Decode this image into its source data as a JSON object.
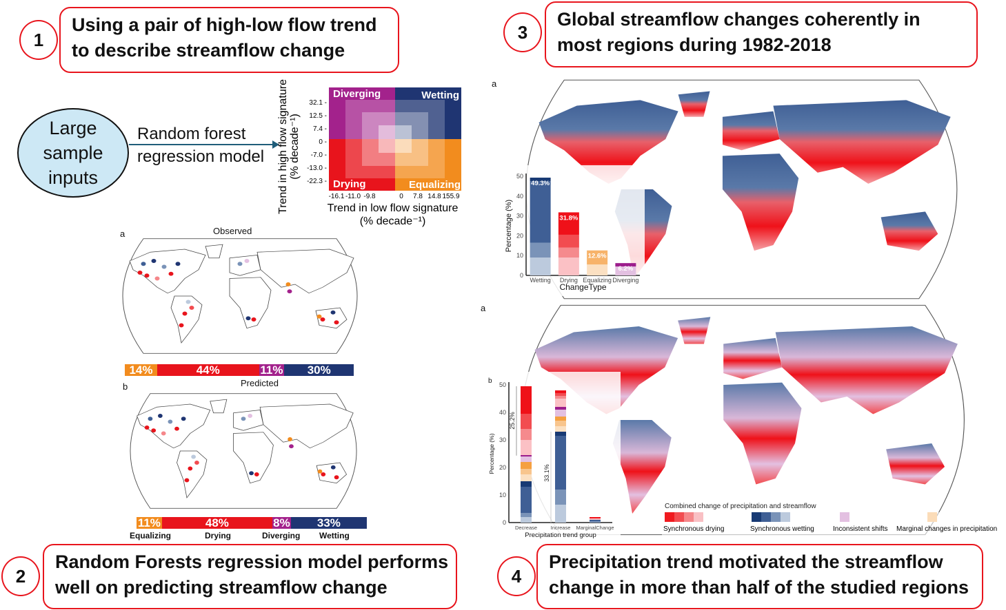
{
  "panel1": {
    "number": "1",
    "title_line1": "Using a pair of high-low flow trend",
    "title_line2": "to describe streamflow change"
  },
  "panel2": {
    "number": "2",
    "title_line1": "Random Forests regression model performs",
    "title_line2": "well on predicting streamflow change"
  },
  "panel3": {
    "number": "3",
    "title_line1": "Global streamflow changes coherently in",
    "title_line2": "most regions during 1982-2018"
  },
  "panel4": {
    "number": "4",
    "title_line1": "Precipitation trend motivated the streamflow",
    "title_line2": "change in more than half of the studied regions"
  },
  "inputs": {
    "line1": "Large",
    "line2": "sample",
    "line3": "inputs"
  },
  "model": {
    "line1": "Random forest",
    "line2": "regression model"
  },
  "matrix": {
    "quadrants": {
      "top_left": "Diverging",
      "top_right": "Wetting",
      "bottom_left": "Drying",
      "bottom_right": "Equalizing"
    },
    "y_label": "Trend in high flow signature",
    "y_unit": "(% decade⁻¹)",
    "x_label": "Trend in low flow signature",
    "x_unit": "(% decade⁻¹)",
    "y_ticks": [
      "32.1",
      "12.5",
      "7.4",
      "0",
      "-7.0",
      "-13.0",
      "-22.3"
    ],
    "x_ticks": [
      "-16.1",
      "-11.0",
      "-9.8",
      "0",
      "7.8",
      "14.8",
      "155.9"
    ],
    "colors": {
      "diverging": "#a3228c",
      "wetting": "#1f3572",
      "drying": "#e8141c",
      "equalizing": "#f28c1e"
    }
  },
  "observed": {
    "panel_letter": "a",
    "title": "Observed",
    "shares": [
      {
        "label": "14%",
        "value": 14,
        "color": "#f28c1e"
      },
      {
        "label": "44%",
        "value": 44,
        "color": "#e8141c"
      },
      {
        "label": "11%",
        "value": 11,
        "color": "#a3228c"
      },
      {
        "label": "30%",
        "value": 30,
        "color": "#1f3572"
      }
    ]
  },
  "predicted": {
    "panel_letter": "b",
    "title": "Predicted",
    "shares": [
      {
        "label": "11%",
        "value": 11,
        "color": "#f28c1e"
      },
      {
        "label": "48%",
        "value": 48,
        "color": "#e8141c"
      },
      {
        "label": "8%",
        "value": 8,
        "color": "#a3228c"
      },
      {
        "label": "33%",
        "value": 33,
        "color": "#1f3572"
      }
    ],
    "categories": [
      "Equalizing",
      "Drying",
      "Diverging",
      "Wetting"
    ]
  },
  "global_map": {
    "panel_letter": "a"
  },
  "precip_map": {
    "panel_letter": "a",
    "legend_title": "Combined change of precipitation and streamflow",
    "legend": [
      {
        "label": "Synchronous drying",
        "colors": [
          "#f01a1f",
          "#f24c50",
          "#f5878a",
          "#f9c0c4"
        ]
      },
      {
        "label": "Synchronous wetting",
        "colors": [
          "#183a74",
          "#3f5f95",
          "#7a93b8",
          "#bccadd"
        ]
      },
      {
        "label": "Inconsistent shifts",
        "colors": [
          "#e3c0e1"
        ]
      },
      {
        "label": "Marginal changes in precipitation",
        "colors": [
          "#fbdcb8"
        ]
      }
    ]
  },
  "chart_data": [
    {
      "type": "bar",
      "stacked": true,
      "xlabel": "ChangeType",
      "ylabel": "Percentage (%)",
      "ylim": [
        0,
        50
      ],
      "yticks": [
        "0",
        "10",
        "20",
        "30",
        "40",
        "50"
      ],
      "categories": [
        "Wetting",
        "Drying",
        "Equalizing",
        "Diverging"
      ],
      "totals": [
        "49.3%",
        "31.8%",
        "12.6%",
        "6.2%"
      ],
      "stacks": [
        [
          {
            "v": 9,
            "c": "#bccadd"
          },
          {
            "v": 7.5,
            "c": "#7a93b8"
          },
          {
            "v": 31,
            "c": "#3f5f95"
          },
          {
            "v": 1.8,
            "c": "#183a74"
          }
        ],
        [
          {
            "v": 9,
            "c": "#fbc1c5"
          },
          {
            "v": 5,
            "c": "#f58a8d"
          },
          {
            "v": 6.5,
            "c": "#f24c50"
          },
          {
            "v": 11.3,
            "c": "#ef1119"
          }
        ],
        [
          {
            "v": 5.5,
            "c": "#fbe0c2"
          },
          {
            "v": 7.1,
            "c": "#f7b36a"
          }
        ],
        [
          {
            "v": 4.5,
            "c": "#e3c0e1"
          },
          {
            "v": 1.7,
            "c": "#9c1d8c"
          }
        ]
      ]
    },
    {
      "type": "bar",
      "stacked": true,
      "panel_letter": "b",
      "xlabel": "Precipitation trend group",
      "ylabel": "Percentage (%)",
      "ylim": [
        0,
        50
      ],
      "yticks": [
        "0",
        "10",
        "20",
        "30",
        "40",
        "50"
      ],
      "categories": [
        "Decrease",
        "Increase",
        "MarginalChange"
      ],
      "annotations": [
        "25.2%",
        "33.1%"
      ],
      "stacks": [
        [
          {
            "v": 2,
            "c": "#bccadd"
          },
          {
            "v": 1.5,
            "c": "#7a93b8"
          },
          {
            "v": 9.5,
            "c": "#3f5f95"
          },
          {
            "v": 2,
            "c": "#183a74"
          },
          {
            "v": 2.5,
            "c": "#fbe0c2"
          },
          {
            "v": 2,
            "c": "#f8c58d"
          },
          {
            "v": 2.5,
            "c": "#f5a040"
          },
          {
            "v": 2,
            "c": "#e3c0e1"
          },
          {
            "v": 0.5,
            "c": "#9c1d8c"
          },
          {
            "v": 5.5,
            "c": "#fbc1c5"
          },
          {
            "v": 4,
            "c": "#f58a8d"
          },
          {
            "v": 5.5,
            "c": "#f24c50"
          },
          {
            "v": 10,
            "c": "#ef1119"
          }
        ],
        [
          {
            "v": 6.5,
            "c": "#bccadd"
          },
          {
            "v": 5.5,
            "c": "#7a93b8"
          },
          {
            "v": 19.5,
            "c": "#3f5f95"
          },
          {
            "v": 1.5,
            "c": "#183a74"
          },
          {
            "v": 2,
            "c": "#fbe0c2"
          },
          {
            "v": 2,
            "c": "#f8c58d"
          },
          {
            "v": 1.5,
            "c": "#f5a040"
          },
          {
            "v": 2.5,
            "c": "#e3c0e1"
          },
          {
            "v": 1,
            "c": "#9c1d8c"
          },
          {
            "v": 3,
            "c": "#fbc1c5"
          },
          {
            "v": 1,
            "c": "#f58a8d"
          },
          {
            "v": 1,
            "c": "#f24c50"
          },
          {
            "v": 1,
            "c": "#ef1119"
          }
        ],
        [
          {
            "v": 0.5,
            "c": "#7a93b8"
          },
          {
            "v": 0.5,
            "c": "#3f5f95"
          },
          {
            "v": 0.5,
            "c": "#fbc1c5"
          },
          {
            "v": 0.5,
            "c": "#ef1119"
          }
        ]
      ]
    }
  ]
}
